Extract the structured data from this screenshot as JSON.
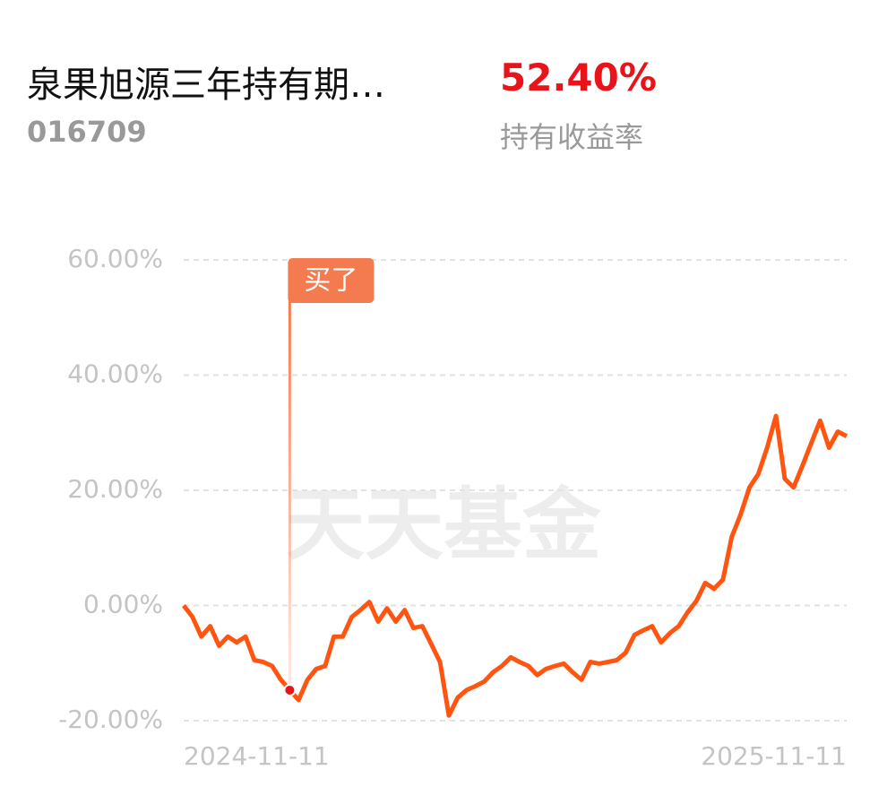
{
  "header": {
    "name": "泉果旭源三年持有期…",
    "code": "016709",
    "return": "52.40%",
    "return_label": "持有收益率"
  },
  "chart_data": {
    "type": "line",
    "watermark": "天天基金",
    "color": "#ff5511",
    "categories": [
      "2024-11-11",
      null,
      null,
      null,
      null,
      null,
      null,
      null,
      null,
      null,
      null,
      null,
      null,
      null,
      null,
      null,
      null,
      null,
      null,
      null,
      null,
      null,
      null,
      null,
      null,
      null,
      null,
      null,
      null,
      null,
      null,
      null,
      null,
      null,
      null,
      null,
      null,
      null,
      null,
      null,
      null,
      null,
      null,
      null,
      null,
      null,
      null,
      null,
      null,
      null,
      null,
      null,
      null,
      null,
      null,
      null,
      null,
      null,
      null,
      null,
      null,
      null,
      null,
      null,
      null,
      null,
      null,
      null,
      null,
      null,
      null,
      null,
      null,
      null,
      null,
      "2025-11-11"
    ],
    "values": [
      0,
      -2,
      -5.4,
      -3.6,
      -7,
      -5.4,
      -6.4,
      -5.4,
      -9.5,
      -9.8,
      -10.5,
      -12.9,
      -14.7,
      -16.4,
      -12.9,
      -11,
      -10.5,
      -5.4,
      -5.4,
      -2,
      -0.8,
      0.6,
      -2.8,
      -0.5,
      -2.8,
      -0.8,
      -3.9,
      -3.6,
      -6.7,
      -9.8,
      -19.1,
      -16,
      -14.7,
      -14,
      -13.2,
      -11.6,
      -10.5,
      -9,
      -9.8,
      -10.5,
      -12.1,
      -11,
      -10.5,
      -10.1,
      -11.6,
      -12.9,
      -9.8,
      -10.1,
      -9.8,
      -9.5,
      -8.2,
      -5.1,
      -4.3,
      -3.6,
      -6.4,
      -4.8,
      -3.6,
      -1.2,
      0.8,
      3.9,
      2.9,
      4.5,
      11.9,
      15.8,
      20.5,
      22.8,
      27.4,
      32.9,
      22,
      20.5,
      24.3,
      28.2,
      32.1,
      27.4,
      30.2,
      29.4
    ],
    "annotation": {
      "text": "买了",
      "index": 12
    },
    "ylim": [
      -20,
      60
    ],
    "yticks": [
      {
        "value": -20,
        "label": "-20.00%"
      },
      {
        "value": 0,
        "label": "0.00%"
      },
      {
        "value": 20,
        "label": "20.00%"
      },
      {
        "value": 40,
        "label": "40.00%"
      },
      {
        "value": 60,
        "label": "60.00%"
      }
    ],
    "grid": true
  }
}
